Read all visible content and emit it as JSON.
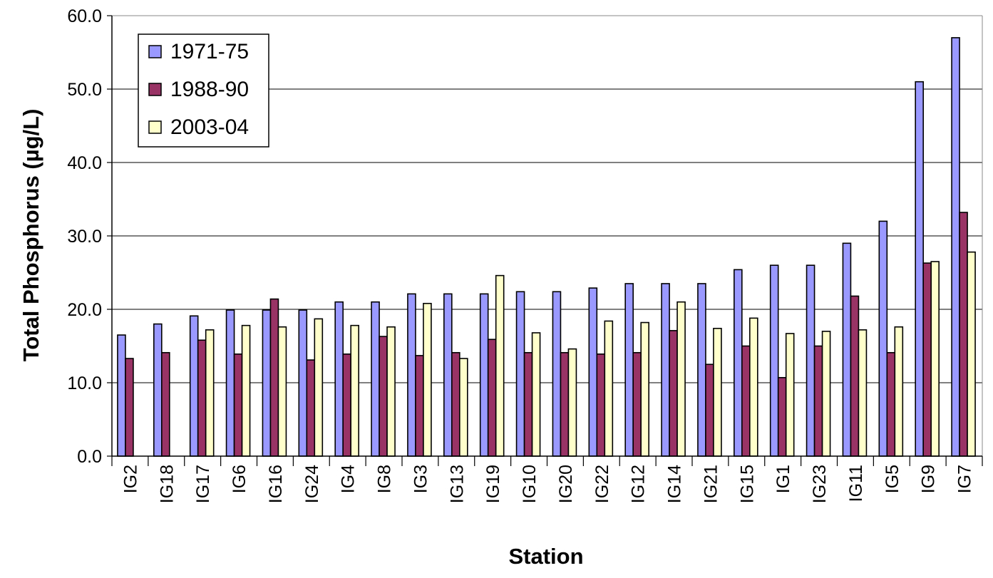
{
  "chart_data": {
    "type": "bar",
    "title": "",
    "xlabel": "Station",
    "ylabel": "Total Phosphorus (µg/L)",
    "ylim": [
      0,
      60
    ],
    "yticks": [
      "0.0",
      "10.0",
      "20.0",
      "30.0",
      "40.0",
      "50.0",
      "60.0"
    ],
    "grid": true,
    "legend_position": "top-left",
    "categories": [
      "IG2",
      "IG18",
      "IG17",
      "IG6",
      "IG16",
      "IG24",
      "IG4",
      "IG8",
      "IG3",
      "IG13",
      "IG19",
      "IG10",
      "IG20",
      "IG22",
      "IG12",
      "IG14",
      "IG21",
      "IG15",
      "IG1",
      "IG23",
      "IG11",
      "IG5",
      "IG9",
      "IG7"
    ],
    "series": [
      {
        "name": "1971-75",
        "color": "#9999FF",
        "values": [
          16.5,
          18.0,
          19.1,
          19.9,
          19.9,
          19.9,
          21.0,
          21.0,
          22.1,
          22.1,
          22.1,
          22.4,
          22.4,
          22.9,
          23.5,
          23.5,
          23.5,
          25.4,
          26.0,
          26.0,
          29.0,
          32.0,
          51.0,
          57.0
        ]
      },
      {
        "name": "1988-90",
        "color": "#993366",
        "values": [
          13.3,
          14.1,
          15.8,
          13.9,
          21.4,
          13.1,
          13.9,
          16.3,
          13.7,
          14.1,
          15.9,
          14.1,
          14.1,
          13.9,
          14.1,
          17.1,
          12.5,
          15.0,
          10.7,
          15.0,
          21.8,
          14.1,
          26.3,
          33.2
        ]
      },
      {
        "name": "2003-04",
        "color": "#FFFFCC",
        "values": [
          null,
          null,
          17.2,
          17.8,
          17.6,
          18.7,
          17.8,
          17.6,
          20.8,
          13.3,
          24.6,
          16.8,
          14.6,
          18.4,
          18.2,
          21.0,
          17.4,
          18.8,
          16.7,
          17.0,
          17.2,
          17.6,
          26.5,
          27.8
        ]
      }
    ]
  }
}
